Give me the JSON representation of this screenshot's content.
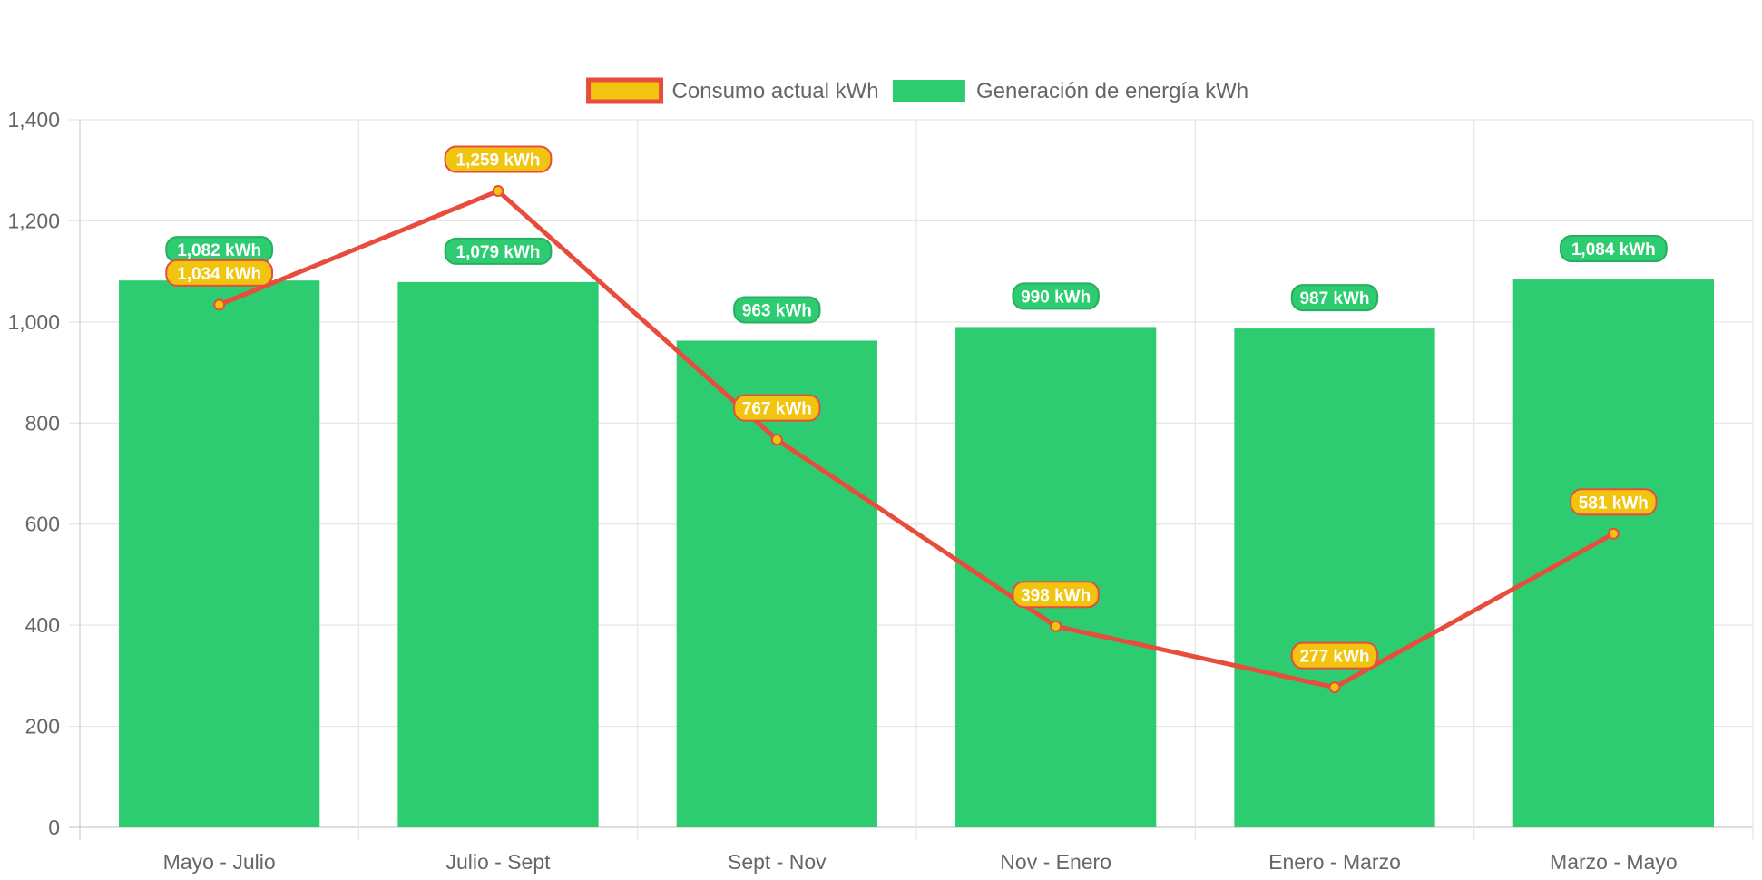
{
  "chart_data": {
    "type": "bar",
    "categories": [
      "Mayo - Julio",
      "Julio - Sept",
      "Sept - Nov",
      "Nov - Enero",
      "Enero - Marzo",
      "Marzo - Mayo"
    ],
    "series": [
      {
        "name": "Consumo actual kWh",
        "type": "line",
        "values": [
          1034,
          1259,
          767,
          398,
          277,
          581
        ],
        "data_labels": [
          "1,034 kWh",
          "1,259 kWh",
          "767 kWh",
          "398 kWh",
          "277 kWh",
          "581 kWh"
        ],
        "line_color": "#e74c3c",
        "fill_color": "#f1c40f"
      },
      {
        "name": "Generación de energía kWh",
        "type": "bar",
        "values": [
          1082,
          1079,
          963,
          990,
          987,
          1084
        ],
        "data_labels": [
          "1,082 kWh",
          "1,079 kWh",
          "963 kWh",
          "990 kWh",
          "987 kWh",
          "1,084 kWh"
        ],
        "fill_color": "#2ecc71",
        "border_color": "#27ae60"
      }
    ],
    "ylim": [
      0,
      1400
    ],
    "yticks": [
      "0",
      "200",
      "400",
      "600",
      "800",
      "1,000",
      "1,200",
      "1,400"
    ],
    "legend_position": "top",
    "grid": true,
    "xlabel": "",
    "ylabel": "",
    "title": ""
  }
}
